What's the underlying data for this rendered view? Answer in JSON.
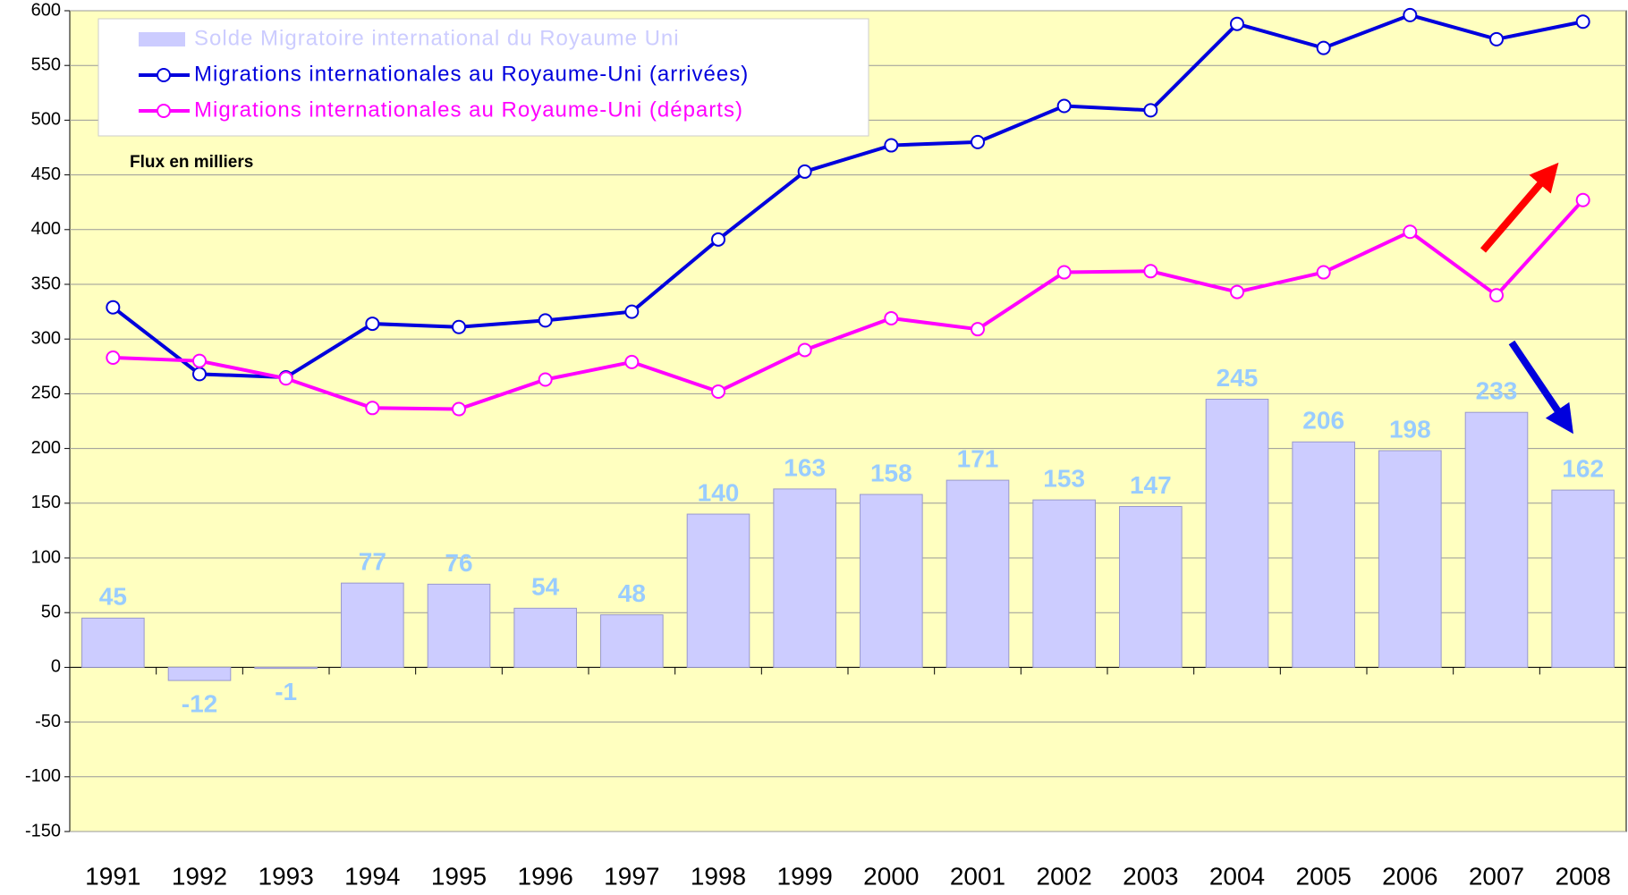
{
  "chart_data": {
    "type": "combo",
    "subtitle": "Flux en milliers",
    "categories": [
      "1991",
      "1992",
      "1993",
      "1994",
      "1995",
      "1996",
      "1997",
      "1998",
      "1999",
      "2000",
      "2001",
      "2002",
      "2003",
      "2004",
      "2005",
      "2006",
      "2007",
      "2008"
    ],
    "series": [
      {
        "name": "Solde Migratoire international du Royaume Uni",
        "type": "bar",
        "color": "#ccccff",
        "label_color": "#99ccff",
        "values": [
          45,
          -12,
          -1,
          77,
          76,
          54,
          48,
          140,
          163,
          158,
          171,
          153,
          147,
          245,
          206,
          198,
          233,
          162
        ]
      },
      {
        "name": "Migrations internationales au Royaume-Uni (arrivées)",
        "type": "line",
        "color": "#0000dd",
        "values": [
          329,
          268,
          265,
          314,
          311,
          317,
          325,
          391,
          453,
          477,
          480,
          513,
          509,
          588,
          566,
          596,
          574,
          590
        ]
      },
      {
        "name": "Migrations internationales au Royaume-Uni (départs)",
        "type": "line",
        "color": "#ff00ff",
        "values": [
          283,
          280,
          264,
          237,
          236,
          263,
          279,
          252,
          290,
          319,
          309,
          361,
          362,
          343,
          361,
          398,
          340,
          427
        ]
      }
    ],
    "ylim": [
      -150,
      600
    ],
    "yticks": [
      -150,
      -100,
      -50,
      0,
      50,
      100,
      150,
      200,
      250,
      300,
      350,
      400,
      450,
      500,
      550,
      600
    ],
    "grid": true
  }
}
